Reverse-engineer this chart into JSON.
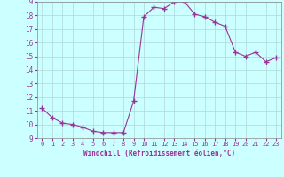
{
  "x": [
    0,
    1,
    2,
    3,
    4,
    5,
    6,
    7,
    8,
    9,
    10,
    11,
    12,
    13,
    14,
    15,
    16,
    17,
    18,
    19,
    20,
    21,
    22,
    23
  ],
  "y": [
    11.2,
    10.5,
    10.1,
    10.0,
    9.8,
    9.5,
    9.4,
    9.4,
    9.4,
    11.7,
    17.9,
    18.6,
    18.5,
    19.0,
    19.0,
    18.1,
    17.9,
    17.5,
    17.2,
    15.3,
    15.0,
    15.3,
    14.6,
    14.9
  ],
  "line_color": "#993399",
  "marker": "+",
  "marker_size": 4,
  "bg_color": "#ccffff",
  "grid_color": "#b0d8d8",
  "xlabel": "Windchill (Refroidissement éolien,°C)",
  "xlabel_color": "#993399",
  "tick_color": "#993399",
  "ylim": [
    9,
    19
  ],
  "xlim": [
    -0.5,
    23.5
  ],
  "yticks": [
    9,
    10,
    11,
    12,
    13,
    14,
    15,
    16,
    17,
    18,
    19
  ],
  "xticks": [
    0,
    1,
    2,
    3,
    4,
    5,
    6,
    7,
    8,
    9,
    10,
    11,
    12,
    13,
    14,
    15,
    16,
    17,
    18,
    19,
    20,
    21,
    22,
    23
  ]
}
